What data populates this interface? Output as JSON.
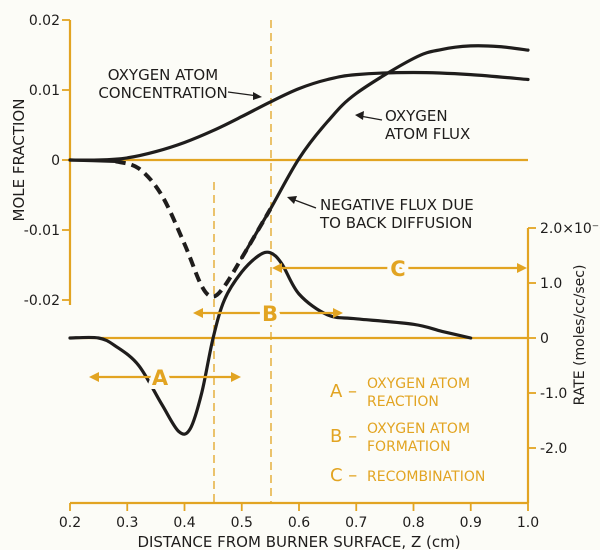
{
  "chart_data": {
    "type": "line",
    "xlabel": "DISTANCE FROM BURNER SURFACE, Z (cm)",
    "xlim": [
      0.2,
      1.0
    ],
    "x_ticks": [
      "0.2",
      "0.3",
      "0.4",
      "0.5",
      "0.6",
      "0.7",
      "0.8",
      "0.9",
      "1.0"
    ],
    "left_axis": {
      "label": "MOLE FRACTION",
      "ylim": [
        -0.02,
        0.02
      ],
      "ticks": [
        "0.02",
        "0.01",
        "0",
        "-0.01",
        "-0.02"
      ]
    },
    "right_axis": {
      "label": "RATE (moles/cc/sec)",
      "ticks": [
        "2.0×10⁻⁵",
        "1.0",
        "0",
        "-1.0",
        "-2.0"
      ],
      "ylim": [
        -2.0,
        2.0
      ]
    },
    "series": [
      {
        "name": "OXYGEN ATOM CONCENTRATION",
        "axis": "left",
        "x": [
          0.2,
          0.25,
          0.3,
          0.35,
          0.4,
          0.45,
          0.5,
          0.55,
          0.6,
          0.65,
          0.7,
          0.8,
          0.9,
          1.0
        ],
        "y": [
          0.0,
          0.0,
          0.0003,
          0.0012,
          0.0025,
          0.0042,
          0.0062,
          0.0083,
          0.0102,
          0.0115,
          0.0122,
          0.0125,
          0.0122,
          0.0115
        ]
      },
      {
        "name": "OXYGEN ATOM FLUX",
        "axis": "left",
        "x": [
          0.2,
          0.28,
          0.32,
          0.36,
          0.4,
          0.43,
          0.45,
          0.47,
          0.5,
          0.55,
          0.6,
          0.65,
          0.7,
          0.8,
          0.85,
          0.9,
          0.95,
          1.0
        ],
        "y": [
          0.0,
          -0.0002,
          -0.0012,
          -0.005,
          -0.012,
          -0.018,
          -0.0195,
          -0.018,
          -0.014,
          -0.007,
          0.0002,
          0.0055,
          0.0095,
          0.0145,
          0.0158,
          0.0163,
          0.0162,
          0.0157
        ]
      },
      {
        "name": "RATE",
        "axis": "right",
        "x": [
          0.2,
          0.25,
          0.28,
          0.32,
          0.36,
          0.39,
          0.41,
          0.43,
          0.45,
          0.47,
          0.5,
          0.53,
          0.55,
          0.57,
          0.6,
          0.65,
          0.7,
          0.8,
          0.85,
          0.9
        ],
        "y": [
          0.0,
          0.0,
          -0.15,
          -0.5,
          -1.2,
          -1.7,
          -1.65,
          -1.0,
          0.0,
          0.7,
          1.2,
          1.5,
          1.55,
          1.35,
          0.8,
          0.42,
          0.35,
          0.25,
          0.12,
          0.0
        ]
      }
    ],
    "vertical_markers": [
      0.45,
      0.55
    ],
    "annotations": {
      "oxygen_atom_concentration": [
        "OXYGEN ATOM",
        "CONCENTRATION"
      ],
      "oxygen_atom_flux": [
        "OXYGEN",
        "ATOM FLUX"
      ],
      "negative_flux": [
        "NEGATIVE FLUX DUE",
        "TO BACK DIFFUSION"
      ],
      "region_A": "A",
      "region_B": "B",
      "region_C": "C"
    },
    "legend": [
      {
        "key": "A –",
        "lines": [
          "OXYGEN ATOM",
          "REACTION"
        ]
      },
      {
        "key": "B –",
        "lines": [
          "OXYGEN ATOM",
          "FORMATION"
        ]
      },
      {
        "key": "C –",
        "lines": [
          "RECOMBINATION"
        ]
      }
    ],
    "colors": {
      "ink": "#1f1d1c",
      "accent": "#e2a422",
      "background": "#fcfcf7"
    }
  }
}
